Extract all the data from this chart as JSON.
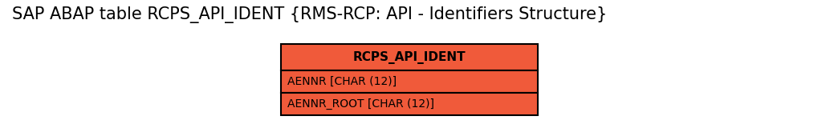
{
  "title": "SAP ABAP table RCPS_API_IDENT {RMS-RCP: API - Identifiers Structure}",
  "title_fontsize": 15,
  "title_color": "#000000",
  "background_color": "#ffffff",
  "table_name": "RCPS_API_IDENT",
  "fields": [
    "AENNR [CHAR (12)]",
    "AENNR_ROOT [CHAR (12)]"
  ],
  "header_bg": "#f05a3a",
  "header_text_color": "#000000",
  "row_bg": "#f05a3a",
  "row_text_color": "#000000",
  "border_color": "#000000",
  "font_family": "DejaVu Sans",
  "header_fontsize": 11,
  "field_fontsize": 10,
  "fig_width": 10.44,
  "fig_height": 1.65,
  "dpi": 100
}
